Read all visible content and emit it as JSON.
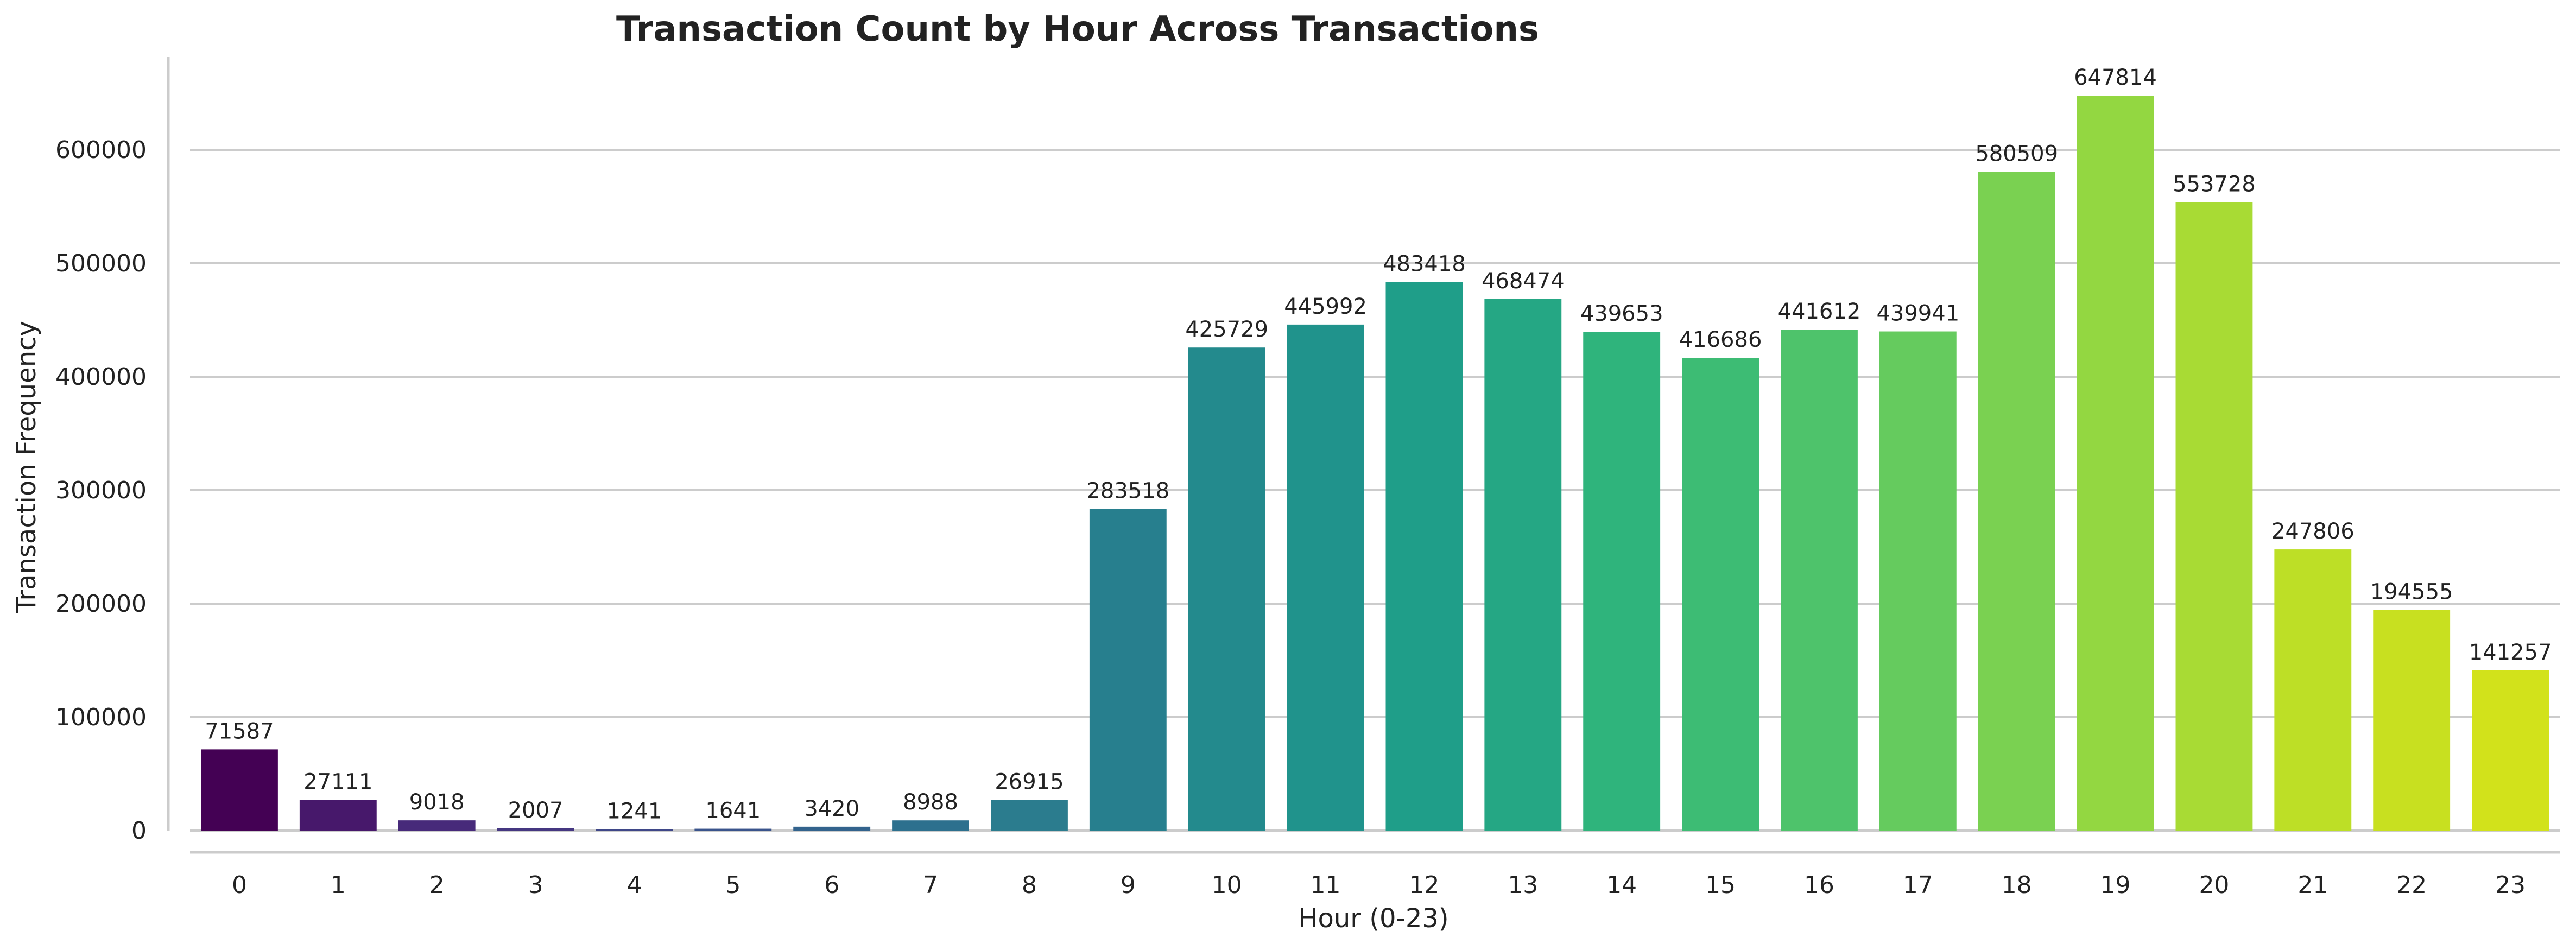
{
  "chart_data": {
    "type": "bar",
    "title": "Transaction Count by Hour Across Transactions",
    "xlabel": "Hour (0-23)",
    "ylabel": "Transaction Frequency",
    "categories": [
      "0",
      "1",
      "2",
      "3",
      "4",
      "5",
      "6",
      "7",
      "8",
      "9",
      "10",
      "11",
      "12",
      "13",
      "14",
      "15",
      "16",
      "17",
      "18",
      "19",
      "20",
      "21",
      "22",
      "23"
    ],
    "values": [
      71587,
      27111,
      9018,
      2007,
      1241,
      1641,
      3420,
      8988,
      26915,
      283518,
      425729,
      445992,
      483418,
      468474,
      439653,
      416686,
      441612,
      439941,
      580509,
      647814,
      553728,
      247806,
      194555,
      141257
    ],
    "data_labels": [
      "71587",
      "27111",
      "9018",
      "2007",
      "1241",
      "1641",
      "3420",
      "8988",
      "26915",
      "283518",
      "425729",
      "445992",
      "483418",
      "468474",
      "439653",
      "416686",
      "441612",
      "439941",
      "580509",
      "647814",
      "553728",
      "247806",
      "194555",
      "141257"
    ],
    "ylim": [
      0,
      680000
    ],
    "y_ticks": [
      0,
      100000,
      200000,
      300000,
      400000,
      500000,
      600000
    ],
    "y_tick_labels": [
      "0",
      "100000",
      "200000",
      "300000",
      "400000",
      "500000",
      "600000"
    ],
    "grid": "horizontal",
    "colormap": "viridis",
    "colors": [
      "#440154",
      "#47186b",
      "#472a7a",
      "#453781",
      "#3f4788",
      "#3a548c",
      "#33638d",
      "#2d708e",
      "#2b7c8e",
      "#277f8e",
      "#238a8d",
      "#20938c",
      "#1f9e89",
      "#25a784",
      "#2fb47c",
      "#3dbc74",
      "#4ec36b",
      "#65cb5e",
      "#7ad151",
      "#93d741",
      "#a8db34",
      "#bddf26",
      "#c8e020",
      "#d2e21b"
    ]
  }
}
